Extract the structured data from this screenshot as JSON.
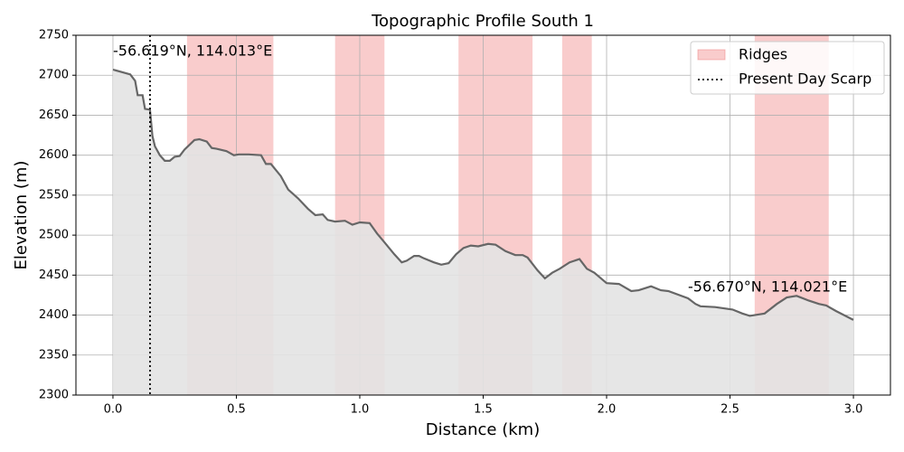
{
  "chart_data": {
    "type": "area",
    "title": "Topographic Profile South 1",
    "x_label": "Distance (km)",
    "y_label": "Elevation (m)",
    "xlim": [
      -0.15,
      3.15
    ],
    "ylim": [
      2300,
      2750
    ],
    "xticks": [
      {
        "value": 0,
        "label": "0.0"
      },
      0.5,
      {
        "value": 1,
        "label": "1.0"
      },
      1.5,
      {
        "value": 2,
        "label": "2.0"
      },
      2.5,
      {
        "value": 3,
        "label": "3.0"
      }
    ],
    "yticks": [
      2300,
      2350,
      2400,
      2450,
      2500,
      2550,
      2600,
      2650,
      2700,
      2750
    ],
    "grid": true,
    "legend": "upper right",
    "color": "#666666",
    "fill_color": "#e3e3e3",
    "x": [
      0,
      0.07,
      0.09,
      0.1,
      0.12,
      0.13,
      0.15,
      0.16,
      0.17,
      0.19,
      0.21,
      0.23,
      0.25,
      0.27,
      0.29,
      0.33,
      0.35,
      0.38,
      0.4,
      0.42,
      0.46,
      0.49,
      0.51,
      0.55,
      0.6,
      0.62,
      0.64,
      0.68,
      0.71,
      0.75,
      0.79,
      0.82,
      0.85,
      0.87,
      0.9,
      0.94,
      0.97,
      1.0,
      1.04,
      1.07,
      1.1,
      1.14,
      1.17,
      1.19,
      1.22,
      1.24,
      1.26,
      1.3,
      1.33,
      1.36,
      1.39,
      1.42,
      1.45,
      1.48,
      1.52,
      1.55,
      1.59,
      1.63,
      1.66,
      1.68,
      1.72,
      1.75,
      1.78,
      1.81,
      1.85,
      1.89,
      1.92,
      1.95,
      2.0,
      2.05,
      2.1,
      2.13,
      2.18,
      2.22,
      2.25,
      2.33,
      2.36,
      2.38,
      2.44,
      2.51,
      2.55,
      2.58,
      2.64,
      2.69,
      2.73,
      2.77,
      2.82,
      2.86,
      2.89,
      2.93,
      3.0
    ],
    "values": [
      2707,
      2701,
      2693,
      2675,
      2675,
      2658,
      2657,
      2624,
      2611,
      2600,
      2593,
      2593,
      2598,
      2599,
      2607,
      2619,
      2620,
      2617,
      2609,
      2608,
      2605,
      2600,
      2601,
      2601,
      2600,
      2589,
      2589,
      2574,
      2557,
      2546,
      2533,
      2525,
      2526,
      2519,
      2517,
      2518,
      2513,
      2516,
      2515,
      2502,
      2491,
      2476,
      2466,
      2468,
      2474,
      2474,
      2471,
      2466,
      2463,
      2465,
      2476,
      2484,
      2487,
      2486,
      2489,
      2488,
      2480,
      2475,
      2475,
      2472,
      2456,
      2446,
      2453,
      2458,
      2466,
      2470,
      2458,
      2453,
      2440,
      2439,
      2430,
      2431,
      2436,
      2431,
      2430,
      2421,
      2414,
      2411,
      2410,
      2407,
      2402,
      2399,
      2402,
      2414,
      2422,
      2424,
      2418,
      2414,
      2412,
      2405,
      2394
    ],
    "ridges": {
      "name": "Ridges",
      "color": "#f08080",
      "spans": [
        [
          0.3,
          0.65
        ],
        [
          0.9,
          1.1
        ],
        [
          1.4,
          1.7
        ],
        [
          1.82,
          1.94
        ],
        [
          2.6,
          2.9
        ]
      ]
    },
    "scarp": {
      "name": "Present Day Scarp",
      "color": "#000000",
      "x": 0.15
    },
    "annotations": [
      "-56.619°N, 114.013°E",
      "-56.670°N, 114.021°E"
    ]
  }
}
